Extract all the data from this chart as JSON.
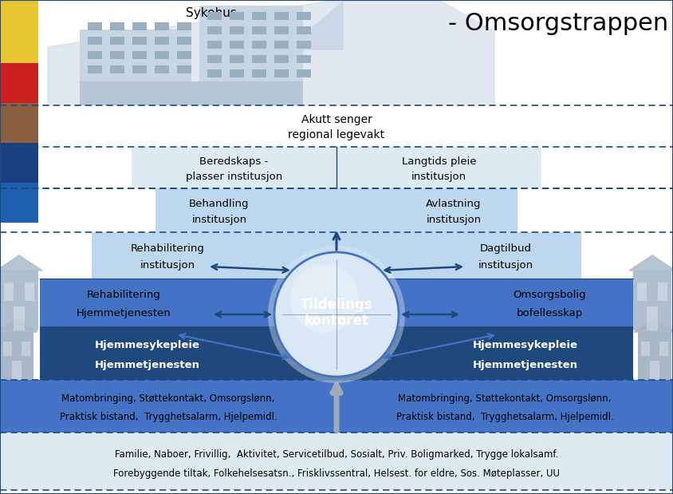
{
  "title": "- Omsorgstrappen",
  "sykehus_label": "Sykehus",
  "row1_label_1": "Akutt senger",
  "row1_label_2": "regional legevakt",
  "row2_left_1": "Beredskaps -",
  "row2_left_2": "plasser institusjon",
  "row2_right_1": "Langtids pleie",
  "row2_right_2": "institusjon",
  "row3_left_1": "Behandling",
  "row3_left_2": "institusjon",
  "row3_right_1": "Avlastning",
  "row3_right_2": "institusjon",
  "row4_left_1": "Rehabilitering",
  "row4_left_2": "institusjon",
  "row4_right_1": "Dagtilbud",
  "row4_right_2": "institusjon",
  "row5_left_1": "Rehabilitering",
  "row5_left_2": "Hjemmetjenesten",
  "center_1": "Tildelings",
  "center_2": "kontoret",
  "row5_right_1": "Omsorgsbolig",
  "row5_right_2": "bofellesskap",
  "row6_left_1": "Hjemmesykepleie",
  "row6_left_2": "Hjemmetjenesten",
  "row6_right_1": "Hjemmesykepleie",
  "row6_right_2": "Hjemmetjenesten",
  "row7_left_1": "Matombringing, Støttekontakt, Omsorgslønn,",
  "row7_left_2": "Praktisk bistand,  Trygghetsalarm, Hjelpemidl.",
  "row7_right_1": "Matombringing, Støttekontakt, Omsorgslønn,",
  "row7_right_2": "Praktisk bistand,  Trygghetsalarm, Hjelpemidl.",
  "row8_1": "Familie, Naboer, Frivillig,  Aktivitet, Servicetilbud, Sosialt, Priv. Boligmarked, Trygge lokalsamf.",
  "row8_2": "Forebyggende tiltak, Folkehelsesatsn., Frisklivssentral, Helsest. for eldre, Sos. Møteplasser, UU",
  "c_darkblue": "#1F497D",
  "c_midblue": "#4472C4",
  "c_lightblue": "#BDD7EE",
  "c_vlightblue": "#DEEAF1",
  "c_white": "#FFFFFF",
  "c_black": "#000000",
  "c_hosp": "#B8C9DA",
  "c_hosp_win": "#D0D8E4",
  "c_hosp_light": "#C5D4E3",
  "c_arrow_gray": "#A0AABB",
  "c_circle_outer": "#C9DDF0",
  "c_circle_inner": "#DAE8F5"
}
